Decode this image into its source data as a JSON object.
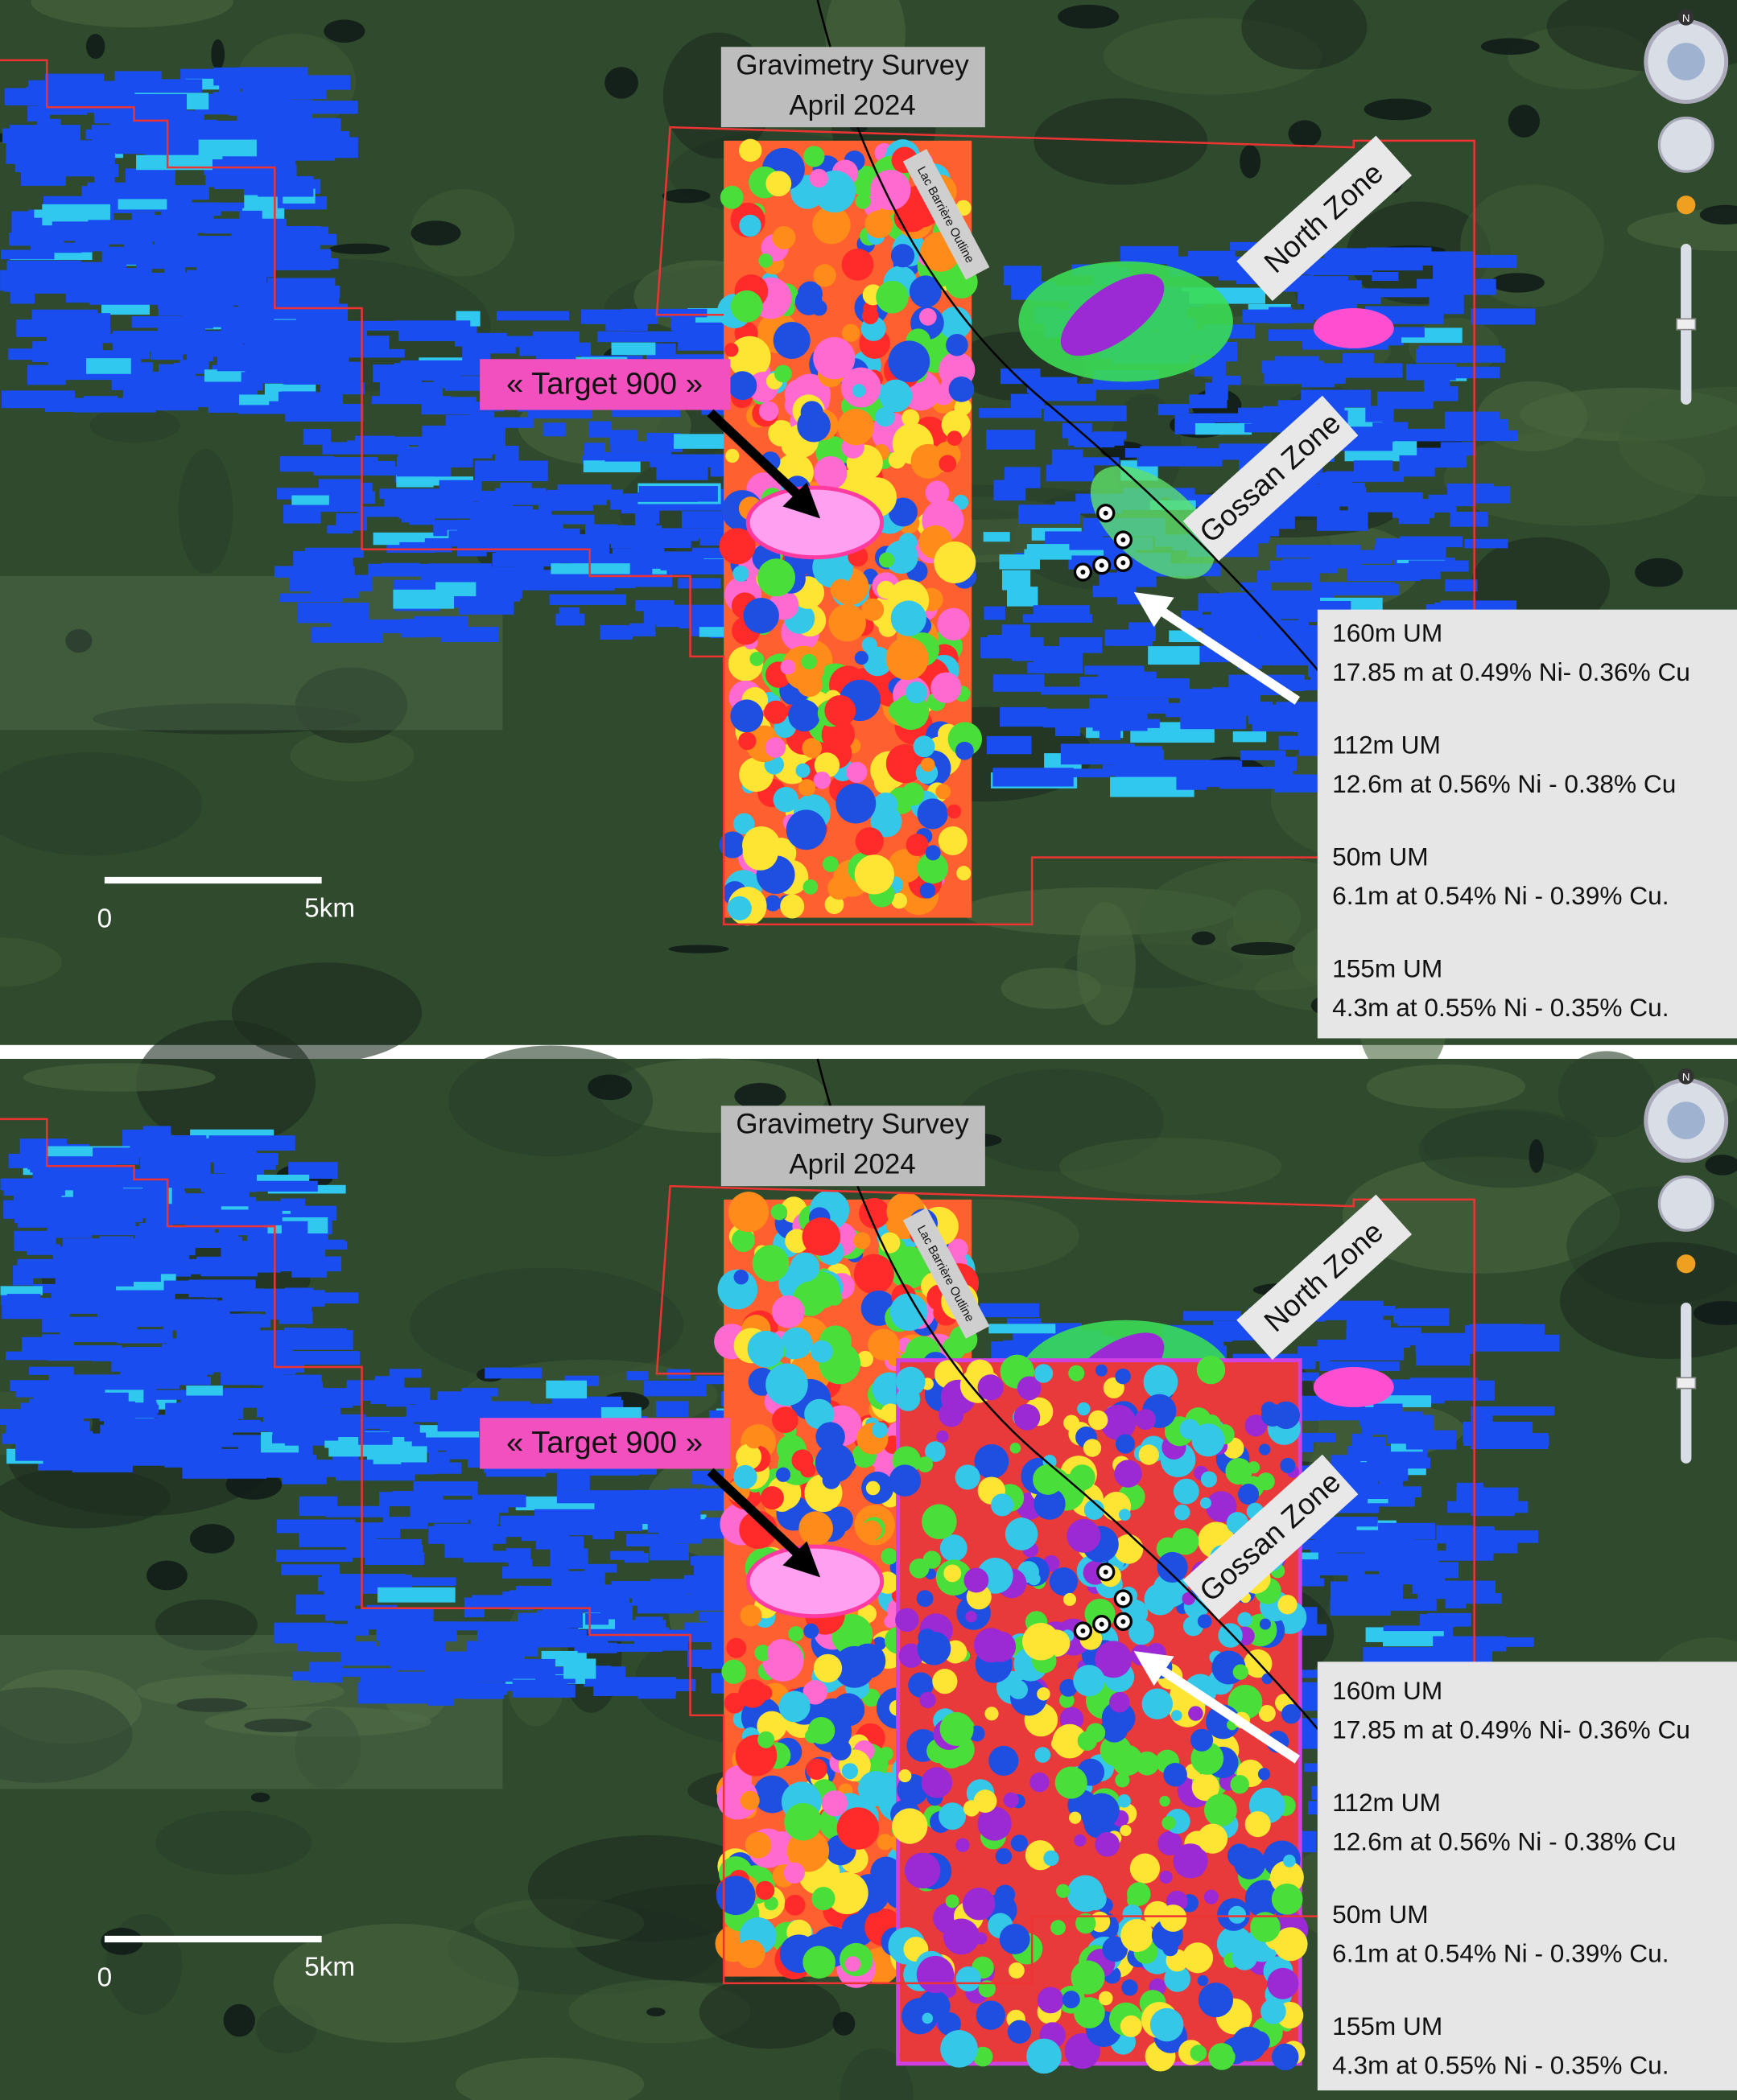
{
  "panels": [
    {
      "compass": "N",
      "survey_label": [
        "Gravimetry Survey",
        "April 2024"
      ],
      "outline_label": "Lac Barrière Outline",
      "target_label": "« Target 900 »",
      "north_zone": "North Zone",
      "gossan_zone": "Gossan Zone",
      "scale_bar": {
        "start": "0",
        "end": "5km"
      },
      "intercepts": [
        {
          "depth": "160m UM",
          "result": "17.85 m at 0.49% Ni- 0.36% Cu"
        },
        {
          "depth": "112m UM",
          "result": "12.6m at 0.56% Ni - 0.38% Cu"
        },
        {
          "depth": "50m UM",
          "result": "6.1m at 0.54% Ni - 0.39% Cu."
        },
        {
          "depth": "155m UM",
          "result": "4.3m at 0.55% Ni - 0.35% Cu."
        }
      ]
    },
    {
      "compass": "N",
      "survey_label": [
        "Gravimetry Survey",
        "April 2024"
      ],
      "outline_label": "Lac Barrière Outline",
      "target_label": "« Target 900 »",
      "north_zone": "North Zone",
      "gossan_zone": "Gossan Zone",
      "scale_bar": {
        "start": "0",
        "end": "5km"
      },
      "intercepts": [
        {
          "depth": "160m UM",
          "result": "17.85 m at 0.49% Ni- 0.36% Cu"
        },
        {
          "depth": "112m UM",
          "result": "12.6m at 0.56% Ni - 0.38% Cu"
        },
        {
          "depth": "50m UM",
          "result": "6.1m at 0.54% Ni - 0.39% Cu."
        },
        {
          "depth": "155m UM",
          "result": "4.3m at 0.55% Ni - 0.35% Cu."
        }
      ]
    }
  ]
}
